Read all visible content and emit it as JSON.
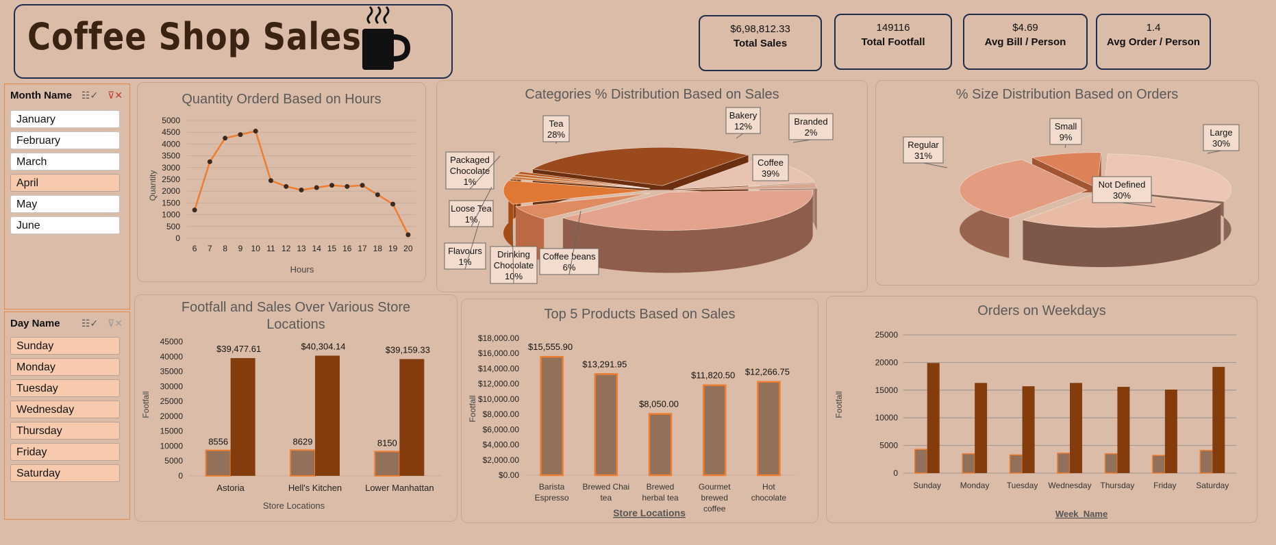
{
  "header": {
    "title": "Coffee Shop Sales",
    "icon": "coffee-mug-icon"
  },
  "kpis": [
    {
      "value": "$6,98,812.33",
      "label": "Total Sales"
    },
    {
      "value": "149116",
      "label": "Total Footfall"
    },
    {
      "value": "$4.69",
      "label": "Avg Bill / Person"
    },
    {
      "value": "1.4",
      "label": "Avg Order / Person"
    }
  ],
  "slicers": {
    "month": {
      "title": "Month Name",
      "items": [
        "January",
        "February",
        "March",
        "April",
        "May",
        "June"
      ],
      "selected": [
        "April"
      ]
    },
    "day": {
      "title": "Day Name",
      "items": [
        "Sunday",
        "Monday",
        "Tuesday",
        "Wednesday",
        "Thursday",
        "Friday",
        "Saturday"
      ],
      "selected": [
        "Sunday",
        "Monday",
        "Tuesday",
        "Wednesday",
        "Thursday",
        "Friday",
        "Saturday"
      ]
    }
  },
  "colors": {
    "accent": "#ed7d31",
    "dark": "#843c0c",
    "muted": "#937059",
    "bg": "#dbbca8"
  },
  "chart_data": [
    {
      "id": "hours",
      "type": "line",
      "title": "Quantity Orderd Based on Hours",
      "xlabel": "Hours",
      "ylabel": "Quantity",
      "x": [
        "6",
        "7",
        "8",
        "9",
        "10",
        "11",
        "12",
        "13",
        "14",
        "15",
        "16",
        "17",
        "18",
        "19",
        "20"
      ],
      "values": [
        1200,
        3250,
        4250,
        4400,
        4550,
        2450,
        2200,
        2050,
        2150,
        2250,
        2200,
        2250,
        1850,
        1450,
        150
      ],
      "yticks": [
        "0",
        "500",
        "1000",
        "1500",
        "2000",
        "2500",
        "3000",
        "3500",
        "4000",
        "4500",
        "5000"
      ],
      "ylim": [
        0,
        5000
      ]
    },
    {
      "id": "categories",
      "type": "pie",
      "title": "Categories % Distribution Based on Sales",
      "slices": [
        {
          "label": "Coffee",
          "pct": "39%",
          "value": 39
        },
        {
          "label": "Tea",
          "pct": "28%",
          "value": 28
        },
        {
          "label": "Bakery",
          "pct": "12%",
          "value": 12
        },
        {
          "label": "Drinking Chocolate",
          "pct": "10%",
          "value": 10
        },
        {
          "label": "Coffee beans",
          "pct": "6%",
          "value": 6
        },
        {
          "label": "Branded",
          "pct": "2%",
          "value": 2
        },
        {
          "label": "Packaged Chocolate",
          "pct": "1%",
          "value": 1
        },
        {
          "label": "Loose Tea",
          "pct": "1%",
          "value": 1
        },
        {
          "label": "Flavours",
          "pct": "1%",
          "value": 1
        }
      ]
    },
    {
      "id": "sizes",
      "type": "pie",
      "title": "% Size Distribution Based on Orders",
      "slices": [
        {
          "label": "Regular",
          "pct": "31%",
          "value": 31
        },
        {
          "label": "Not Defined",
          "pct": "30%",
          "value": 30
        },
        {
          "label": "Large",
          "pct": "30%",
          "value": 30
        },
        {
          "label": "Small",
          "pct": "9%",
          "value": 9
        }
      ]
    },
    {
      "id": "stores",
      "type": "bar",
      "title": "Footfall and Sales Over Various Store Locations",
      "xlabel": "Store Locations",
      "ylabel": "Footfall",
      "categories": [
        "Astoria",
        "Hell's Kitchen",
        "Lower Manhattan"
      ],
      "series": [
        {
          "values": [
            8556,
            8629,
            8150
          ],
          "labels": [
            "8556",
            "8629",
            "8150"
          ]
        },
        {
          "values": [
            39477.61,
            40304.14,
            39159.33
          ],
          "labels": [
            "$39,477.61",
            "$40,304.14",
            "$39,159.33"
          ]
        }
      ],
      "yticks": [
        "0",
        "5000",
        "10000",
        "15000",
        "20000",
        "25000",
        "30000",
        "35000",
        "40000",
        "45000"
      ],
      "ylim": [
        0,
        45000
      ]
    },
    {
      "id": "products",
      "type": "bar",
      "title": "Top 5 Products Based on Sales",
      "xlabel": "Store Locations",
      "ylabel": "Footfall",
      "categories": [
        [
          "Barista",
          "Espresso"
        ],
        [
          "Brewed Chai",
          "tea"
        ],
        [
          "Brewed",
          "herbal tea"
        ],
        [
          "Gourmet",
          "brewed",
          "coffee"
        ],
        [
          "Hot",
          "chocolate"
        ]
      ],
      "values": [
        15555.9,
        13291.95,
        8050.0,
        11820.5,
        12266.75
      ],
      "labels": [
        "$15,555.90",
        "$13,291.95",
        "$8,050.00",
        "$11,820.50",
        "$12,266.75"
      ],
      "yticks": [
        "$0.00",
        "$2,000.00",
        "$4,000.00",
        "$6,000.00",
        "$8,000.00",
        "$10,000.00",
        "$12,000.00",
        "$14,000.00",
        "$16,000.00",
        "$18,000.00"
      ],
      "ylim": [
        0,
        18000
      ]
    },
    {
      "id": "weekdays",
      "type": "bar",
      "title": "Orders on Weekdays",
      "xlabel": "Week_Name",
      "ylabel": "Footfall",
      "categories": [
        "Sunday",
        "Monday",
        "Tuesday",
        "Wednesday",
        "Thursday",
        "Friday",
        "Saturday"
      ],
      "series": [
        {
          "values": [
            4300,
            3500,
            3300,
            3600,
            3500,
            3200,
            4100
          ]
        },
        {
          "values": [
            19900,
            16300,
            15700,
            16300,
            15600,
            15100,
            19200
          ]
        }
      ],
      "yticks": [
        "0",
        "5000",
        "10000",
        "15000",
        "20000",
        "25000"
      ],
      "ylim": [
        0,
        25000
      ]
    }
  ]
}
